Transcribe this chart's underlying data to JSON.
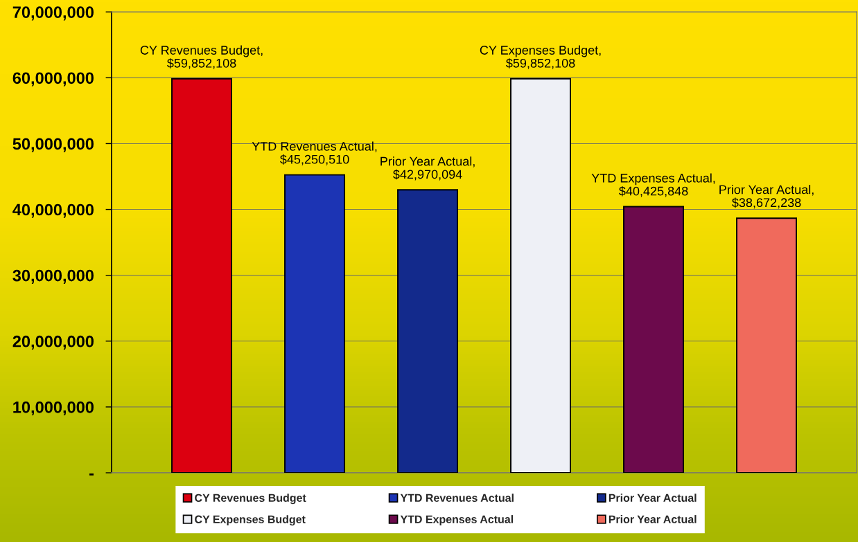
{
  "chart_data": {
    "type": "bar",
    "categories": [
      null
    ],
    "series": [
      {
        "name": "CY Revenues Budget",
        "color": "#dc0010",
        "values": [
          59852108
        ],
        "value_labels": [
          "CY Revenues Budget,\n$59,852,108"
        ]
      },
      {
        "name": "YTD Revenues Actual",
        "color": "#1c34b4",
        "values": [
          45250510
        ],
        "value_labels": [
          "YTD Revenues Actual,\n$45,250,510"
        ]
      },
      {
        "name": "Prior Year Actual",
        "color": "#132a8c",
        "values": [
          42970094
        ],
        "value_labels": [
          "Prior Year Actual,\n$42,970,094"
        ]
      },
      {
        "name": "CY Expenses Budget",
        "color": "#eef0f6",
        "values": [
          59852108
        ],
        "value_labels": [
          "CY Expenses Budget,\n$59,852,108"
        ]
      },
      {
        "name": "YTD Expenses Actual",
        "color": "#6c0a4c",
        "values": [
          40425848
        ],
        "value_labels": [
          "YTD Expenses Actual,\n$40,425,848"
        ]
      },
      {
        "name": "Prior Year Actual",
        "color": "#f06a5c",
        "values": [
          38672238
        ],
        "value_labels": [
          "Prior Year Actual,\n$38,672,238"
        ]
      }
    ],
    "ylim": [
      0,
      70000000
    ],
    "yticks": [
      {
        "value": 0,
        "label": "-"
      },
      {
        "value": 10000000,
        "label": "10,000,000"
      },
      {
        "value": 20000000,
        "label": "20,000,000"
      },
      {
        "value": 30000000,
        "label": "30,000,000"
      },
      {
        "value": 40000000,
        "label": "40,000,000"
      },
      {
        "value": 50000000,
        "label": "50,000,000"
      },
      {
        "value": 60000000,
        "label": "60,000,000"
      },
      {
        "value": 70000000,
        "label": "70,000,000"
      }
    ],
    "grid": "y",
    "legend": "bottom"
  }
}
